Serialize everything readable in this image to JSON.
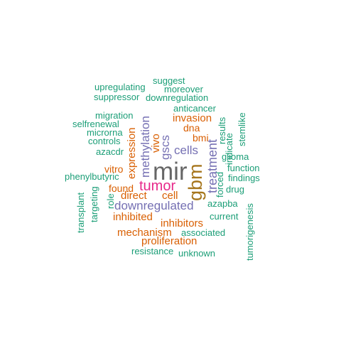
{
  "colors": {
    "teal": "#1b9e77",
    "orange": "#d95f02",
    "purple": "#7570b3",
    "pink": "#e7298a",
    "olive": "#a6761d",
    "gray": "#666666"
  },
  "words": {
    "suggest": "suggest",
    "upregulating": "upregulating",
    "moreover": "moreover",
    "suppressor": "suppressor",
    "downregulation": "downregulation",
    "anticancer": "anticancer",
    "migration": "migration",
    "invasion": "invasion",
    "selfrenewal": "selfrenewal",
    "dna": "dna",
    "microrna": "microrna",
    "bmi": "bmi",
    "controls": "controls",
    "cells": "cells",
    "indicate": "indicate",
    "azacdr": "azacdr",
    "glioma": "glioma",
    "function": "function",
    "vitro": "vitro",
    "mir": "mir",
    "phenylbutyric": "phenylbutyric",
    "findings": "findings",
    "tumor": "tumor",
    "found": "found",
    "drug": "drug",
    "direct": "direct",
    "cell": "cell",
    "azapba": "azapba",
    "downregulated": "downregulated",
    "current": "current",
    "inhibited": "inhibited",
    "inhibitors": "inhibitors",
    "mechanism": "mechanism",
    "associated": "associated",
    "proliferation": "proliferation",
    "resistance": "resistance",
    "unknown": "unknown",
    "methylation": "methylation",
    "expression": "expression",
    "vivo": "vivo",
    "gscs": "gscs",
    "gbm": "gbm",
    "treatment": "treatment",
    "results": "results",
    "stemlike": "stemlike",
    "forced": "forced",
    "transplant": "transplant",
    "targeting": "targeting",
    "role": "role",
    "tumorigenesis": "tumorigenesis"
  }
}
